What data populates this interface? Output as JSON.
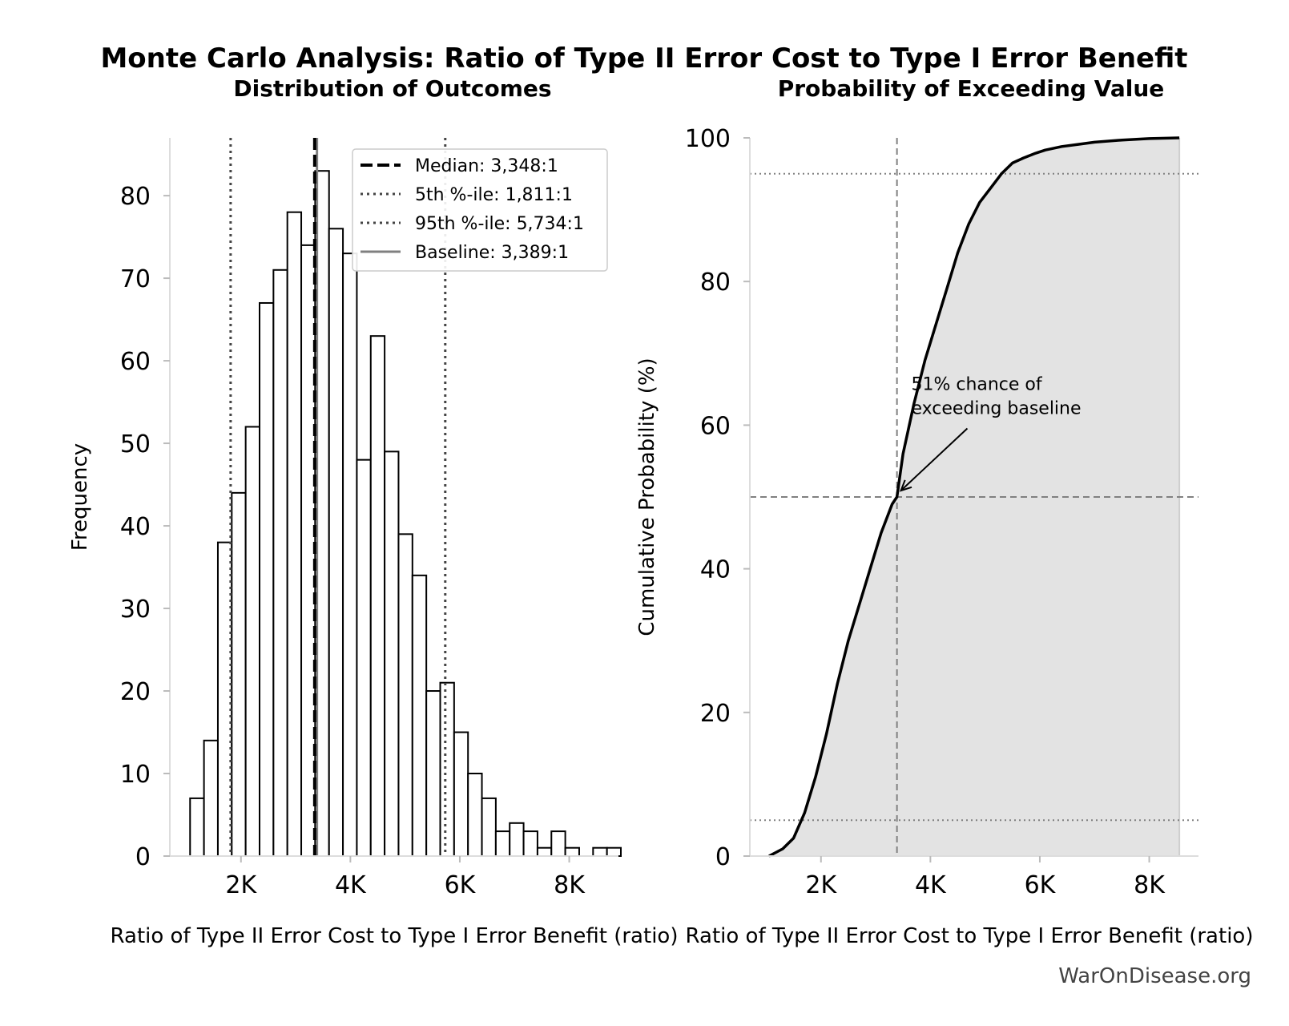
{
  "suptitle": "Monte Carlo Analysis: Ratio of Type II Error Cost to Type I Error Benefit",
  "watermark": "WarOnDisease.org",
  "chart_data": [
    {
      "type": "bar",
      "title": "Distribution of Outcomes",
      "xlabel": "Ratio of Type II Error Cost to Type I Error Benefit (ratio)",
      "ylabel": "Frequency",
      "xlim": [
        700,
        8900
      ],
      "ylim": [
        0,
        87
      ],
      "x_tick_values": [
        2000,
        4000,
        6000,
        8000
      ],
      "x_tick_labels": [
        "2K",
        "4K",
        "6K",
        "8K"
      ],
      "y_tick_values": [
        0,
        10,
        20,
        30,
        40,
        50,
        60,
        70,
        80
      ],
      "y_tick_labels": [
        "0",
        "10",
        "20",
        "30",
        "40",
        "50",
        "60",
        "70",
        "80"
      ],
      "bin_start": 1070,
      "bin_width": 254,
      "counts": [
        7,
        14,
        38,
        44,
        52,
        67,
        71,
        78,
        74,
        83,
        76,
        73,
        48,
        63,
        49,
        39,
        34,
        20,
        21,
        15,
        10,
        7,
        3,
        4,
        3,
        1,
        3,
        1,
        0,
        1,
        1
      ],
      "median": 3348,
      "p5": 1811,
      "p95": 5734,
      "baseline": 3389,
      "grid": false,
      "legend_position": "upper right",
      "legend": [
        {
          "label": "Median: 3,348:1",
          "style": "dashed",
          "color": "#000000"
        },
        {
          "label": "5th %-ile: 1,811:1",
          "style": "dotted",
          "color": "#444444"
        },
        {
          "label": "95th %-ile: 5,734:1",
          "style": "dotted",
          "color": "#444444"
        },
        {
          "label": "Baseline: 3,389:1",
          "style": "solid",
          "color": "#808080"
        }
      ]
    },
    {
      "type": "area",
      "title": "Probability of Exceeding Value",
      "xlabel": "Ratio of Type II Error Cost to Type I Error Benefit (ratio)",
      "ylabel": "Cumulative Probability (%)",
      "xlim": [
        700,
        8900
      ],
      "ylim": [
        0,
        100
      ],
      "x_tick_values": [
        2000,
        4000,
        6000,
        8000
      ],
      "x_tick_labels": [
        "2K",
        "4K",
        "6K",
        "8K"
      ],
      "y_tick_values": [
        0,
        20,
        40,
        60,
        80,
        100
      ],
      "y_tick_labels": [
        "0",
        "20",
        "40",
        "60",
        "80",
        "100"
      ],
      "x": [
        1050,
        1300,
        1500,
        1700,
        1900,
        2100,
        2300,
        2500,
        2700,
        2900,
        3100,
        3300,
        3389,
        3500,
        3700,
        3900,
        4100,
        4300,
        4500,
        4700,
        4900,
        5100,
        5300,
        5500,
        5700,
        5900,
        6100,
        6400,
        6700,
        7000,
        7500,
        8000,
        8550
      ],
      "y": [
        0,
        1,
        2.5,
        6,
        11,
        17,
        24,
        30,
        35,
        40,
        45,
        49,
        50,
        56,
        63,
        69,
        74,
        79,
        84,
        88,
        91,
        93,
        95,
        96.5,
        97.2,
        97.8,
        98.3,
        98.8,
        99.1,
        99.4,
        99.7,
        99.9,
        100
      ],
      "baseline": 3389,
      "baseline_probability": 50,
      "reference_lines": [
        5,
        95
      ],
      "fill_color": "#e3e3e3",
      "annotation": {
        "text_lines": [
          "51% chance of",
          "exceeding baseline"
        ],
        "x": 3389,
        "y": 50,
        "text_x": 3650,
        "text_y": 62
      }
    }
  ]
}
